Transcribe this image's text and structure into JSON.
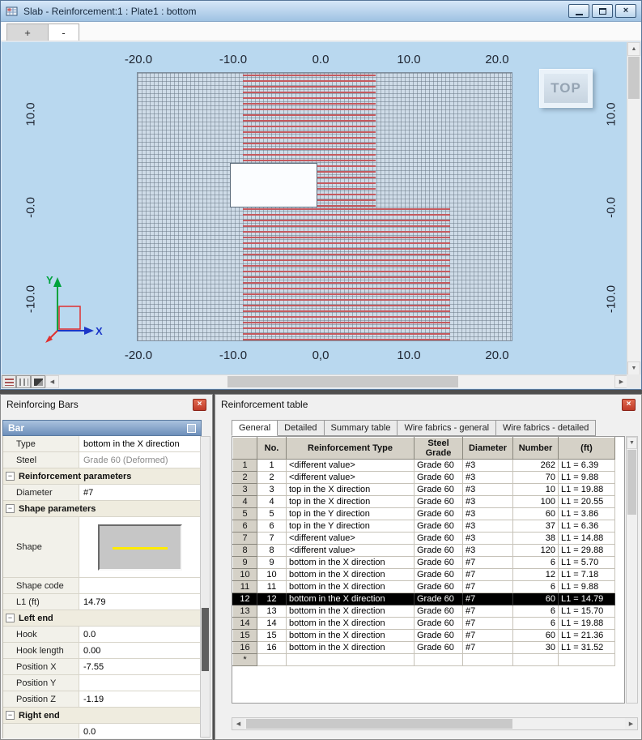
{
  "icons": {
    "close_x": "×",
    "minus_collapse": "−",
    "arrow_up": "▲",
    "arrow_down": "▼",
    "arrow_left": "◀",
    "arrow_right": "▶"
  },
  "colors": {
    "rebar_red": "#c4595e",
    "canvas_blue": "#b9d8ef",
    "selection_bg": "#000000",
    "selection_fg": "#ffffff"
  },
  "window": {
    "title": "Slab - Reinforcement:1 : Plate1  : bottom",
    "view_tabs": [
      "+",
      "-"
    ],
    "view_indicator": "TOP",
    "axes": {
      "x_label": "X",
      "y_label": "Y"
    },
    "ticks": {
      "top": [
        "-20.0",
        "-10.0",
        "0.0",
        "10.0",
        "20.0"
      ],
      "bottom": [
        "-20.0",
        "-10.0",
        "0,0",
        "10.0",
        "20.0"
      ],
      "left": [
        "10.0",
        "-0.0",
        "-10.0"
      ],
      "right": [
        "10.0",
        "-0.0",
        "-10.0"
      ]
    }
  },
  "reinforcing_bars": {
    "title": "Reinforcing Bars",
    "section_header": "Bar",
    "rows": [
      {
        "kind": "prop",
        "label": "Type",
        "value": "bottom in the X direction"
      },
      {
        "kind": "prop",
        "label": "Steel",
        "value": "Grade 60 (Deformed)",
        "muted": true
      },
      {
        "kind": "group",
        "label": "Reinforcement parameters"
      },
      {
        "kind": "prop",
        "label": "Diameter",
        "value": "#7"
      },
      {
        "kind": "group",
        "label": "Shape parameters"
      },
      {
        "kind": "shape",
        "label": "Shape",
        "value": ""
      },
      {
        "kind": "prop",
        "label": "Shape code",
        "value": ""
      },
      {
        "kind": "prop",
        "label": "L1 (ft)",
        "value": "14.79"
      },
      {
        "kind": "group",
        "label": "Left end"
      },
      {
        "kind": "prop",
        "label": "Hook",
        "value": "0.0"
      },
      {
        "kind": "prop",
        "label": "Hook length",
        "value": "0.00"
      },
      {
        "kind": "prop",
        "label": "Position X",
        "value": "-7.55"
      },
      {
        "kind": "prop",
        "label": "Position Y",
        "value": ""
      },
      {
        "kind": "prop",
        "label": "Position Z",
        "value": "-1.19"
      },
      {
        "kind": "group",
        "label": "Right end"
      },
      {
        "kind": "prop",
        "label": "",
        "value": "0.0"
      }
    ]
  },
  "reinforcement_table": {
    "title": "Reinforcement table",
    "tabs": [
      "General",
      "Detailed",
      "Summary table",
      "Wire fabrics - general",
      "Wire fabrics - detailed"
    ],
    "active_tab": "General",
    "columns": [
      "No.",
      "Reinforcement Type",
      "Steel Grade",
      "Diameter",
      "Number",
      "(ft)"
    ],
    "selected_no": "12",
    "new_row_marker": "*",
    "rows": [
      [
        "1",
        "<different value>",
        "Grade 60",
        "#3",
        "262",
        "L1 = 6.39"
      ],
      [
        "2",
        "<different value>",
        "Grade 60",
        "#3",
        "70",
        "L1 = 9.88"
      ],
      [
        "3",
        "top in the X direction",
        "Grade 60",
        "#3",
        "10",
        "L1 = 19.88"
      ],
      [
        "4",
        "top in the X direction",
        "Grade 60",
        "#3",
        "100",
        "L1 = 20.55"
      ],
      [
        "5",
        "top in the Y direction",
        "Grade 60",
        "#3",
        "60",
        "L1 = 3.86"
      ],
      [
        "6",
        "top in the Y direction",
        "Grade 60",
        "#3",
        "37",
        "L1 = 6.36"
      ],
      [
        "7",
        "<different value>",
        "Grade 60",
        "#3",
        "38",
        "L1 = 14.88"
      ],
      [
        "8",
        "<different value>",
        "Grade 60",
        "#3",
        "120",
        "L1 = 29.88"
      ],
      [
        "9",
        "bottom in the X direction",
        "Grade 60",
        "#7",
        "6",
        "L1 = 5.70"
      ],
      [
        "10",
        "bottom in the X direction",
        "Grade 60",
        "#7",
        "12",
        "L1 = 7.18"
      ],
      [
        "11",
        "bottom in the X direction",
        "Grade 60",
        "#7",
        "6",
        "L1 = 9.88"
      ],
      [
        "12",
        "bottom in the X direction",
        "Grade 60",
        "#7",
        "60",
        "L1 = 14.79"
      ],
      [
        "13",
        "bottom in the X direction",
        "Grade 60",
        "#7",
        "6",
        "L1 = 15.70"
      ],
      [
        "14",
        "bottom in the X direction",
        "Grade 60",
        "#7",
        "6",
        "L1 = 19.88"
      ],
      [
        "15",
        "bottom in the X direction",
        "Grade 60",
        "#7",
        "60",
        "L1 = 21.36"
      ],
      [
        "16",
        "bottom in the X direction",
        "Grade 60",
        "#7",
        "30",
        "L1 = 31.52"
      ]
    ]
  }
}
